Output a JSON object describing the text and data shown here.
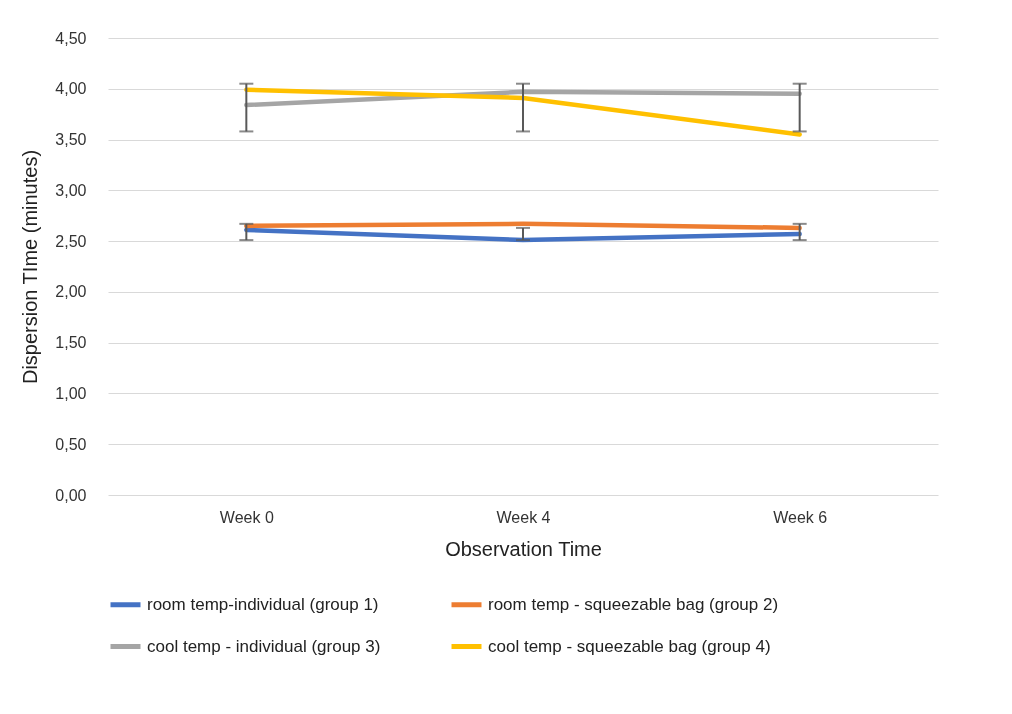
{
  "chart_data": {
    "type": "line",
    "xlabel": "Observation Time",
    "ylabel": "Dispersion TIme (minutes)",
    "categories": [
      "Week 0",
      "Week  4",
      "Week 6"
    ],
    "series": [
      {
        "name": "room temp-individual (group 1)",
        "color": "#4472c4",
        "values": [
          2.61,
          2.51,
          2.57
        ],
        "errors": [
          [
            2.51,
            2.67
          ],
          [
            2.51,
            2.63
          ],
          [
            2.51,
            2.67
          ]
        ]
      },
      {
        "name": "room temp - squeezable bag (group 2)",
        "color": "#ed7d31",
        "values": [
          2.65,
          2.67,
          2.63
        ]
      },
      {
        "name": "cool temp - individual (group 3)",
        "color": "#a5a5a5",
        "values": [
          3.84,
          3.97,
          3.95
        ],
        "errors": [
          [
            3.58,
            4.05
          ],
          [
            3.58,
            4.05
          ],
          [
            3.58,
            4.05
          ]
        ]
      },
      {
        "name": "cool temp - squeezable bag (group 4)",
        "color": "#ffc000",
        "values": [
          3.99,
          3.91,
          3.55
        ]
      }
    ],
    "ylim": [
      0,
      4.5
    ],
    "yticks": [
      {
        "value": 0,
        "label": "0,00"
      },
      {
        "value": 0.5,
        "label": "0,50"
      },
      {
        "value": 1,
        "label": "1,00"
      },
      {
        "value": 1.5,
        "label": "1,50"
      },
      {
        "value": 2,
        "label": "2,00"
      },
      {
        "value": 2.5,
        "label": "2,50"
      },
      {
        "value": 3,
        "label": "3,00"
      },
      {
        "value": 3.5,
        "label": "3,50"
      },
      {
        "value": 4,
        "label": "4,00"
      },
      {
        "value": 4.5,
        "label": "4,50"
      }
    ],
    "grid": "y",
    "legend": "bottom",
    "marker": "none",
    "line_style": "solid"
  }
}
